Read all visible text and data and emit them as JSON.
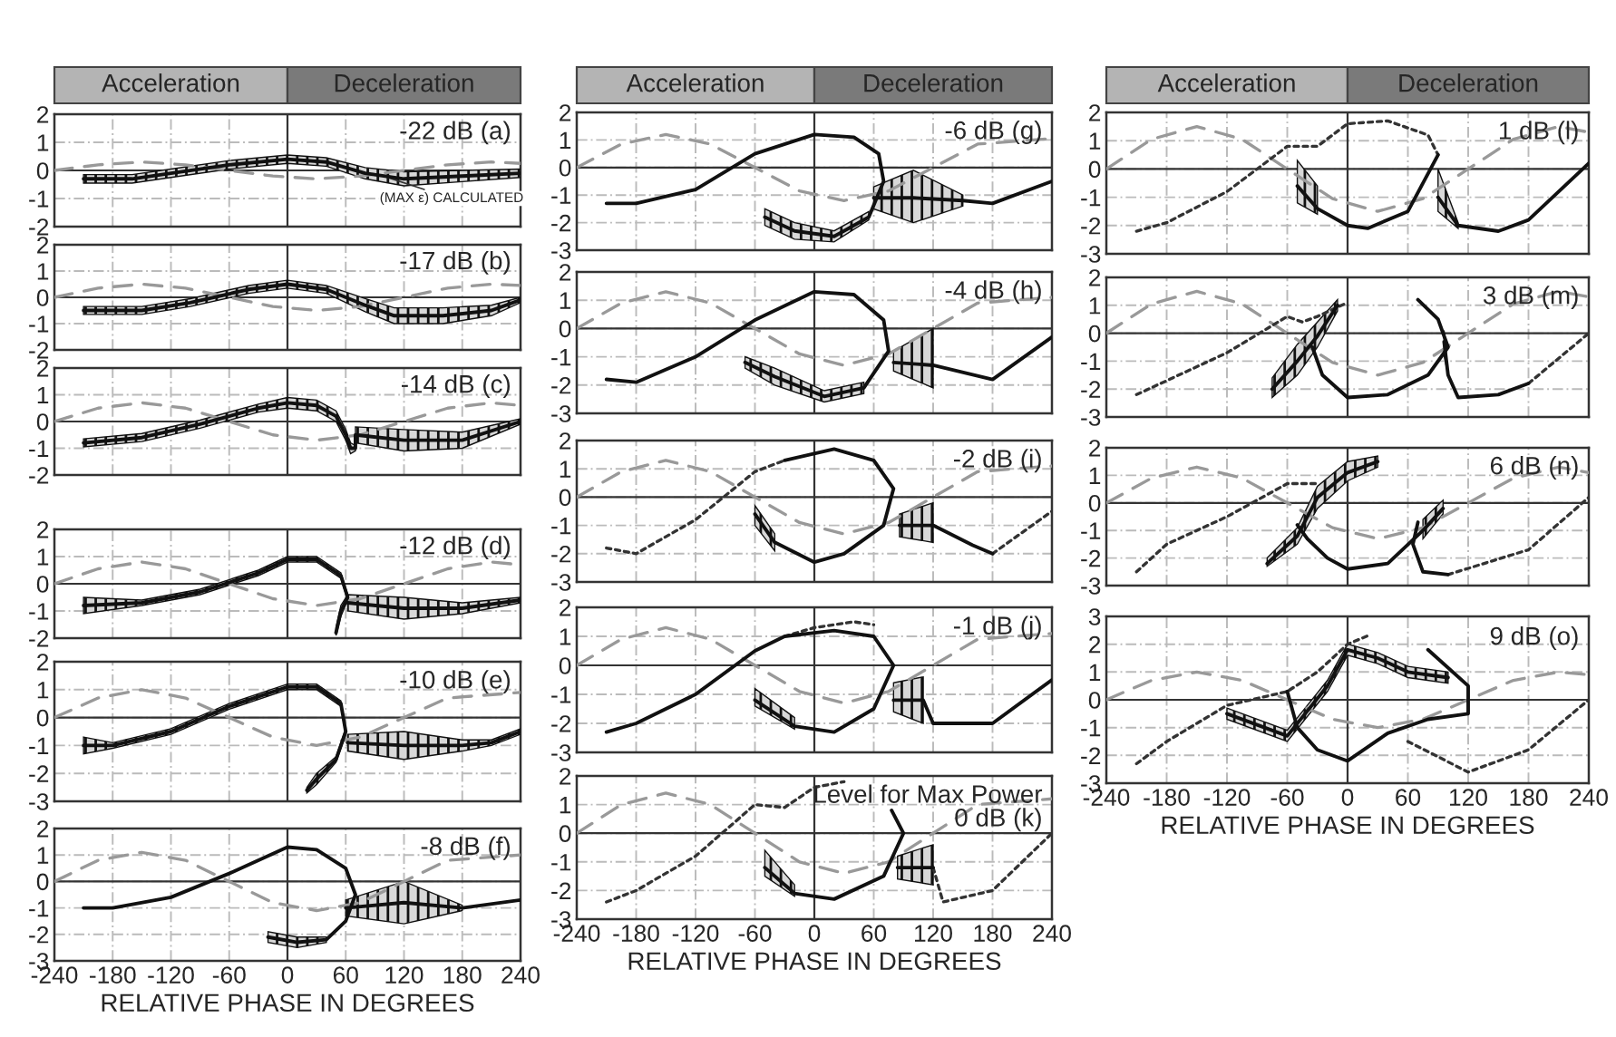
{
  "chart_data": [
    {
      "type": "line",
      "title": "-22 dB (a)",
      "ylim": [
        -2,
        2
      ],
      "yticks": [
        -2,
        -1,
        0,
        1,
        2
      ],
      "xlim": [
        -240,
        240
      ],
      "xticks": [
        -240,
        -180,
        -120,
        -60,
        0,
        60,
        120,
        180,
        240
      ],
      "grid": true,
      "tick_labels": "y",
      "annotations": [
        "Acceleration",
        "Deceleration",
        {
          "text": "(MAX ε) CALCULATED",
          "x": 90,
          "y": -0.1
        }
      ],
      "series": [
        {
          "color": "#999999",
          "line_style": "dashed",
          "x": [
            -240,
            -195,
            -150,
            -105,
            -60,
            -15,
            30,
            75,
            120,
            165,
            210,
            240
          ],
          "values": [
            0,
            0.2,
            0.3,
            0.2,
            0,
            -0.2,
            -0.3,
            -0.2,
            0,
            0.2,
            0.3,
            0.25
          ]
        },
        {
          "color": "#111111",
          "line_style": "solid",
          "x": [
            -210,
            -160,
            -120,
            -60,
            0,
            40,
            80,
            120,
            180,
            240
          ],
          "values": [
            -0.3,
            -0.3,
            -0.1,
            0.2,
            0.4,
            0.3,
            -0.1,
            -0.3,
            -0.2,
            -0.1
          ],
          "lower": [
            -0.45,
            -0.45,
            -0.25,
            0.05,
            0.25,
            0.15,
            -0.3,
            -0.55,
            -0.4,
            -0.25
          ],
          "upper": [
            -0.15,
            -0.15,
            0.05,
            0.35,
            0.55,
            0.45,
            0.1,
            -0.05,
            0,
            0.05
          ]
        }
      ]
    },
    {
      "type": "line",
      "title": "-17 dB (b)",
      "ylim": [
        -2,
        2
      ],
      "yticks": [
        -2,
        -1,
        0,
        1,
        2
      ],
      "xlim": [
        -240,
        240
      ],
      "xticks": [
        -240,
        -180,
        -120,
        -60,
        0,
        60,
        120,
        180,
        240
      ],
      "grid": true,
      "tick_labels": "y",
      "series": [
        {
          "color": "#999999",
          "line_style": "dashed",
          "x": [
            -240,
            -195,
            -150,
            -105,
            -60,
            -15,
            30,
            75,
            120,
            165,
            210,
            240
          ],
          "values": [
            0,
            0.35,
            0.5,
            0.35,
            0,
            -0.35,
            -0.5,
            -0.35,
            0,
            0.35,
            0.5,
            0.45
          ]
        },
        {
          "color": "#111111",
          "line_style": "solid",
          "x": [
            -210,
            -150,
            -100,
            -40,
            0,
            40,
            80,
            110,
            160,
            210,
            240
          ],
          "values": [
            -0.5,
            -0.5,
            -0.2,
            0.3,
            0.5,
            0.3,
            -0.3,
            -0.7,
            -0.7,
            -0.5,
            -0.1
          ],
          "lower": [
            -0.65,
            -0.65,
            -0.35,
            0.15,
            0.35,
            0.15,
            -0.55,
            -1.0,
            -1.0,
            -0.7,
            -0.2
          ],
          "upper": [
            -0.35,
            -0.35,
            -0.05,
            0.45,
            0.65,
            0.45,
            -0.05,
            -0.4,
            -0.4,
            -0.3,
            0
          ]
        }
      ]
    },
    {
      "type": "line",
      "title": "-14 dB (c)",
      "ylim": [
        -2,
        2
      ],
      "yticks": [
        -2,
        -1,
        0,
        1,
        2
      ],
      "xlim": [
        -240,
        240
      ],
      "xticks": [
        -240,
        -180,
        -120,
        -60,
        0,
        60,
        120,
        180,
        240
      ],
      "grid": true,
      "tick_labels": "y",
      "series": [
        {
          "color": "#999999",
          "line_style": "dashed",
          "x": [
            -240,
            -195,
            -150,
            -105,
            -60,
            -15,
            30,
            75,
            120,
            165,
            210,
            240
          ],
          "values": [
            0,
            0.5,
            0.7,
            0.5,
            0,
            -0.5,
            -0.7,
            -0.5,
            0,
            0.5,
            0.7,
            0.6
          ]
        },
        {
          "color": "#111111",
          "line_style": "solid",
          "x": [
            -210,
            -150,
            -90,
            -30,
            0,
            30,
            50,
            60,
            65,
            70,
            70,
            120,
            180,
            240
          ],
          "values": [
            -0.8,
            -0.6,
            -0.1,
            0.5,
            0.7,
            0.6,
            0.2,
            -0.5,
            -1.0,
            -1.0,
            -0.5,
            -0.7,
            -0.7,
            0
          ],
          "lower": [
            -0.95,
            -0.75,
            -0.25,
            0.35,
            0.5,
            0.4,
            0,
            -0.7,
            -1.2,
            -1.1,
            -0.8,
            -1.1,
            -1.0,
            -0.1
          ],
          "upper": [
            -0.65,
            -0.45,
            0.05,
            0.65,
            0.9,
            0.8,
            0.4,
            -0.3,
            -0.8,
            -0.9,
            -0.2,
            -0.3,
            -0.4,
            0.1
          ]
        }
      ]
    },
    {
      "type": "line",
      "title": "-12 dB (d)",
      "ylim": [
        -2,
        2
      ],
      "yticks": [
        -2,
        -1,
        0,
        1,
        2
      ],
      "xlim": [
        -240,
        240
      ],
      "xticks": [
        -240,
        -180,
        -120,
        -60,
        0,
        60,
        120,
        180,
        240
      ],
      "grid": true,
      "tick_labels": "y",
      "series": [
        {
          "color": "#999999",
          "line_style": "dashed",
          "x": [
            -240,
            -195,
            -150,
            -105,
            -60,
            -15,
            30,
            75,
            120,
            165,
            210,
            240
          ],
          "values": [
            0,
            0.55,
            0.8,
            0.55,
            0,
            -0.55,
            -0.8,
            -0.55,
            0,
            0.55,
            0.8,
            0.7
          ]
        },
        {
          "color": "#111111",
          "line_style": "solid",
          "x": [
            -210,
            -150,
            -90,
            -30,
            0,
            30,
            55,
            62,
            55,
            50,
            null,
            62,
            120,
            180,
            240
          ],
          "values": [
            -0.8,
            -0.7,
            -0.3,
            0.4,
            0.9,
            0.9,
            0.3,
            -0.5,
            -1.0,
            -1.8,
            null,
            -0.7,
            -0.9,
            -0.9,
            -0.6
          ],
          "lower": [
            -1.1,
            -0.8,
            -0.4,
            0.3,
            0.8,
            0.8,
            0.2,
            -0.6,
            -1.2,
            -1.9,
            null,
            -1.0,
            -1.3,
            -1.1,
            -0.7
          ],
          "upper": [
            -0.5,
            -0.6,
            -0.2,
            0.5,
            1.0,
            1.0,
            0.4,
            -0.4,
            -0.8,
            -1.6,
            null,
            -0.4,
            -0.5,
            -0.7,
            -0.5
          ]
        }
      ]
    },
    {
      "type": "line",
      "title": "-10 dB (e)",
      "ylim": [
        -3,
        2
      ],
      "yticks": [
        -3,
        -2,
        -1,
        0,
        1,
        2
      ],
      "xlim": [
        -240,
        240
      ],
      "xticks": [
        -240,
        -180,
        -120,
        -60,
        0,
        60,
        120,
        180,
        240
      ],
      "grid": true,
      "tick_labels": "y",
      "series": [
        {
          "color": "#999999",
          "line_style": "dashed",
          "x": [
            -240,
            -195,
            -150,
            -105,
            -60,
            -15,
            30,
            75,
            120,
            165,
            240
          ],
          "values": [
            0,
            0.7,
            1.0,
            0.7,
            0,
            -0.7,
            -1.0,
            -0.7,
            0,
            0.7,
            0.9
          ]
        },
        {
          "color": "#111111",
          "line_style": "solid",
          "x": [
            -210,
            -180,
            -120,
            -60,
            0,
            30,
            55,
            60,
            50,
            30,
            20,
            null,
            62,
            120,
            180,
            210,
            240
          ],
          "values": [
            -1.0,
            -1.0,
            -0.5,
            0.4,
            1.1,
            1.1,
            0.5,
            -0.5,
            -1.5,
            -2.2,
            -2.6,
            null,
            -0.9,
            -1.0,
            -1.0,
            -0.9,
            -0.5
          ],
          "lower": [
            -1.3,
            -1.1,
            -0.6,
            0.3,
            1.0,
            1.0,
            0.4,
            -0.6,
            -1.6,
            -2.4,
            -2.7,
            null,
            -1.2,
            -1.5,
            -1.2,
            -1.0,
            -0.6
          ],
          "upper": [
            -0.7,
            -0.9,
            -0.4,
            0.5,
            1.2,
            1.2,
            0.6,
            -0.4,
            -1.4,
            -2.0,
            -2.5,
            null,
            -0.6,
            -0.5,
            -0.8,
            -0.8,
            -0.4
          ]
        }
      ]
    },
    {
      "type": "line",
      "title": "-8 dB (f)",
      "xlabel": "RELATIVE PHASE IN DEGREES",
      "ylim": [
        -3,
        2
      ],
      "yticks": [
        -3,
        -2,
        -1,
        0,
        1,
        2
      ],
      "xlim": [
        -240,
        240
      ],
      "xticks": [
        -240,
        -180,
        -120,
        -60,
        0,
        60,
        120,
        180,
        240
      ],
      "grid": true,
      "series": [
        {
          "color": "#999999",
          "line_style": "dashed",
          "x": [
            -240,
            -195,
            -150,
            -105,
            -60,
            -15,
            30,
            75,
            120,
            165,
            240
          ],
          "values": [
            0,
            0.8,
            1.1,
            0.8,
            0,
            -0.8,
            -1.1,
            -0.8,
            0,
            0.8,
            1.0
          ]
        },
        {
          "color": "#111111",
          "line_style": "solid",
          "x": [
            -210,
            -180,
            -120,
            -60,
            0,
            30,
            60,
            70,
            60,
            40,
            10,
            -20,
            null,
            60,
            120,
            180,
            240
          ],
          "values": [
            -1.0,
            -1.0,
            -0.6,
            0.3,
            1.3,
            1.2,
            0.5,
            -0.5,
            -1.5,
            -2.2,
            -2.3,
            -2.1,
            null,
            -1.0,
            -0.8,
            -1.0,
            -0.7
          ],
          "lower": [
            null,
            null,
            null,
            null,
            null,
            null,
            null,
            null,
            null,
            -2.3,
            -2.5,
            -2.3,
            null,
            -1.3,
            -1.6,
            -1.1,
            null
          ],
          "upper": [
            null,
            null,
            null,
            null,
            null,
            null,
            null,
            null,
            null,
            -2.1,
            -2.1,
            -1.9,
            null,
            -0.7,
            0,
            -0.9,
            null
          ]
        }
      ]
    },
    {
      "type": "line",
      "title": "-6 dB (g)",
      "ylim": [
        -3,
        2
      ],
      "yticks": [
        -3,
        -2,
        -1,
        0,
        1,
        2
      ],
      "xlim": [
        -240,
        240
      ],
      "xticks": [
        -240,
        -180,
        -120,
        -60,
        0,
        60,
        120,
        180,
        240
      ],
      "grid": true,
      "tick_labels": "y",
      "annotations": [
        "Acceleration",
        "Deceleration"
      ],
      "series": [
        {
          "color": "#999999",
          "line_style": "dashed",
          "x": [
            -240,
            -195,
            -150,
            -105,
            -60,
            -15,
            30,
            75,
            120,
            165,
            240
          ],
          "values": [
            0,
            0.85,
            1.2,
            0.85,
            0,
            -0.85,
            -1.2,
            -0.85,
            0,
            0.85,
            1.05
          ]
        },
        {
          "color": "#111111",
          "line_style": "solid",
          "x": [
            -210,
            -180,
            -120,
            -60,
            0,
            40,
            65,
            70,
            55,
            20,
            -20,
            -50,
            null,
            60,
            100,
            150,
            180,
            240
          ],
          "values": [
            -1.3,
            -1.3,
            -0.8,
            0.5,
            1.2,
            1.1,
            0.5,
            -0.5,
            -1.8,
            -2.5,
            -2.3,
            -1.8,
            null,
            -1.1,
            -1.1,
            -1.2,
            -1.3,
            -0.5
          ],
          "lower": [
            null,
            null,
            null,
            null,
            null,
            null,
            null,
            null,
            -1.9,
            -2.7,
            -2.6,
            -2.1,
            null,
            -1.5,
            -2.0,
            -1.4,
            null,
            null
          ],
          "upper": [
            null,
            null,
            null,
            null,
            null,
            null,
            null,
            null,
            -1.6,
            -2.3,
            -2.0,
            -1.5,
            null,
            -0.7,
            -0.1,
            -1.0,
            null,
            null
          ]
        }
      ]
    },
    {
      "type": "line",
      "title": "-4 dB (h)",
      "ylim": [
        -3,
        2
      ],
      "yticks": [
        -3,
        -2,
        -1,
        0,
        1,
        2
      ],
      "xlim": [
        -240,
        240
      ],
      "xticks": [
        -240,
        -180,
        -120,
        -60,
        0,
        60,
        120,
        180,
        240
      ],
      "grid": true,
      "tick_labels": "y",
      "series": [
        {
          "color": "#999999",
          "line_style": "dashed",
          "x": [
            -240,
            -195,
            -150,
            -105,
            -60,
            -15,
            30,
            75,
            120,
            165,
            240
          ],
          "values": [
            0,
            0.9,
            1.3,
            0.9,
            0,
            -0.9,
            -1.3,
            -0.9,
            0,
            0.9,
            1.1
          ]
        },
        {
          "color": "#111111",
          "line_style": "solid",
          "x": [
            -210,
            -180,
            -120,
            -60,
            0,
            40,
            70,
            75,
            50,
            10,
            -40,
            -70,
            null,
            80,
            120,
            180,
            240
          ],
          "values": [
            -1.8,
            -1.9,
            -1.0,
            0.3,
            1.3,
            1.2,
            0.3,
            -0.8,
            -2.1,
            -2.4,
            -1.7,
            -1.2,
            null,
            -1.2,
            -1.3,
            -1.8,
            -0.3
          ],
          "lower": [
            null,
            null,
            null,
            null,
            null,
            null,
            null,
            null,
            -2.3,
            -2.6,
            -2.0,
            -1.4,
            null,
            -1.5,
            -2.1,
            null,
            null
          ],
          "upper": [
            null,
            null,
            null,
            null,
            null,
            null,
            null,
            null,
            -1.9,
            -2.2,
            -1.4,
            -1.0,
            null,
            -0.8,
            0,
            null,
            null
          ]
        }
      ]
    },
    {
      "type": "line",
      "title": "-2 dB (i)",
      "ylim": [
        -3,
        2
      ],
      "yticks": [
        -3,
        -2,
        -1,
        0,
        1,
        2
      ],
      "xlim": [
        -240,
        240
      ],
      "xticks": [
        -240,
        -180,
        -120,
        -60,
        0,
        60,
        120,
        180,
        240
      ],
      "grid": true,
      "tick_labels": "y",
      "series": [
        {
          "color": "#999999",
          "line_style": "dashed",
          "x": [
            -240,
            -195,
            -150,
            -105,
            -60,
            -15,
            30,
            75,
            120,
            165,
            240
          ],
          "values": [
            0,
            0.9,
            1.3,
            0.9,
            0,
            -0.9,
            -1.3,
            -0.9,
            0,
            0.9,
            1.1
          ]
        },
        {
          "color": "#333333",
          "line_style": "dotted",
          "x": [
            -210,
            -180,
            -120,
            -60,
            -30,
            null,
            180,
            240
          ],
          "values": [
            -1.8,
            -2.0,
            -0.8,
            0.9,
            1.3,
            null,
            -2.0,
            -0.5
          ]
        },
        {
          "color": "#111111",
          "line_style": "solid",
          "x": [
            -30,
            20,
            60,
            80,
            70,
            30,
            0,
            -40,
            -60,
            null,
            86,
            120,
            160,
            180
          ],
          "values": [
            1.3,
            1.7,
            1.3,
            0.3,
            -1.0,
            -2.0,
            -2.3,
            -1.6,
            -0.6,
            null,
            -1.0,
            -1.0,
            -1.7,
            -2.0
          ],
          "lower": [
            null,
            null,
            null,
            null,
            null,
            null,
            null,
            -1.9,
            -1.0,
            null,
            -1.4,
            -1.6,
            null,
            null
          ],
          "upper": [
            null,
            null,
            null,
            null,
            null,
            null,
            null,
            -1.3,
            -0.3,
            null,
            -0.6,
            -0.2,
            null,
            null
          ]
        }
      ]
    },
    {
      "type": "line",
      "title": "-1 dB (j)",
      "ylim": [
        -3,
        2
      ],
      "yticks": [
        -3,
        -2,
        -1,
        0,
        1,
        2
      ],
      "xlim": [
        -240,
        240
      ],
      "xticks": [
        -240,
        -180,
        -120,
        -60,
        0,
        60,
        120,
        180,
        240
      ],
      "grid": true,
      "tick_labels": "y",
      "series": [
        {
          "color": "#999999",
          "line_style": "dashed",
          "x": [
            -240,
            -195,
            -150,
            -105,
            -60,
            -15,
            30,
            75,
            120,
            165,
            240
          ],
          "values": [
            0,
            0.9,
            1.3,
            0.9,
            0,
            -0.9,
            -1.3,
            -0.9,
            0,
            0.9,
            1.1
          ]
        },
        {
          "color": "#333333",
          "line_style": "dotted",
          "x": [
            -30,
            0,
            40,
            60
          ],
          "values": [
            1.0,
            1.3,
            1.5,
            1.4
          ]
        },
        {
          "color": "#111111",
          "line_style": "solid",
          "x": [
            -210,
            -180,
            -120,
            -60,
            -30,
            20,
            60,
            80,
            60,
            20,
            -20,
            -60,
            null,
            80,
            110,
            120,
            180,
            240
          ],
          "values": [
            -2.3,
            -2.0,
            -1.0,
            0.5,
            1.0,
            1.2,
            1.0,
            0.0,
            -1.5,
            -2.3,
            -2.1,
            -1.2,
            null,
            -1.2,
            -1.2,
            -2.0,
            -2.0,
            -0.5
          ],
          "lower": [
            null,
            null,
            null,
            null,
            null,
            null,
            null,
            null,
            null,
            null,
            -2.2,
            -1.4,
            null,
            -1.6,
            -2.0,
            null,
            null,
            null
          ],
          "upper": [
            null,
            null,
            null,
            null,
            null,
            null,
            null,
            null,
            null,
            null,
            -1.8,
            -0.8,
            null,
            -0.6,
            -0.4,
            null,
            null,
            null
          ]
        }
      ]
    },
    {
      "type": "line",
      "title": "Level for Max Power\n0 dB (k)",
      "xlabel": "RELATIVE PHASE IN DEGREES",
      "ylim": [
        -3,
        2
      ],
      "yticks": [
        -3,
        -2,
        -1,
        0,
        1,
        2
      ],
      "xlim": [
        -240,
        240
      ],
      "xticks": [
        -240,
        -180,
        -120,
        -60,
        0,
        60,
        120,
        180,
        240
      ],
      "grid": true,
      "series": [
        {
          "color": "#999999",
          "line_style": "dashed",
          "x": [
            -240,
            -195,
            -150,
            -105,
            -60,
            -15,
            30,
            75,
            120,
            165,
            240
          ],
          "values": [
            0,
            1.0,
            1.4,
            1.0,
            0,
            -1.0,
            -1.4,
            -1.0,
            0,
            1.0,
            1.2
          ]
        },
        {
          "color": "#333333",
          "line_style": "dotted",
          "x": [
            -210,
            -180,
            -120,
            -60,
            -30,
            0,
            30,
            null,
            120,
            130,
            180,
            240
          ],
          "values": [
            -2.4,
            -2.0,
            -0.8,
            1.0,
            0.9,
            1.6,
            1.8,
            null,
            -1.2,
            -2.4,
            -2.0,
            0.0
          ]
        },
        {
          "color": "#111111",
          "line_style": "solid",
          "x": [
            78,
            90,
            70,
            20,
            -20,
            -50,
            null,
            84,
            120
          ],
          "values": [
            0.8,
            0,
            -1.5,
            -2.3,
            -2.1,
            -1.2,
            null,
            -1.2,
            -1.2
          ],
          "lower": [
            null,
            null,
            null,
            null,
            -2.2,
            -1.5,
            null,
            -1.6,
            -1.8
          ],
          "upper": [
            null,
            null,
            null,
            null,
            -1.8,
            -0.6,
            null,
            -0.8,
            -0.4
          ]
        }
      ]
    },
    {
      "type": "line",
      "title": "1 dB (l)",
      "ylim": [
        -3,
        2
      ],
      "yticks": [
        -3,
        -2,
        -1,
        0,
        1,
        2
      ],
      "xlim": [
        -240,
        240
      ],
      "xticks": [
        -240,
        -180,
        -120,
        -60,
        0,
        60,
        120,
        180,
        240
      ],
      "grid": true,
      "tick_labels": "y",
      "annotations": [
        "Acceleration",
        "Deceleration"
      ],
      "series": [
        {
          "color": "#999999",
          "line_style": "dashed",
          "x": [
            -240,
            -195,
            -150,
            -105,
            -60,
            -15,
            30,
            75,
            120,
            165,
            210,
            240
          ],
          "values": [
            0,
            1.05,
            1.5,
            1.05,
            0,
            -1.05,
            -1.5,
            -1.05,
            0,
            1.05,
            1.5,
            1.3
          ]
        },
        {
          "color": "#333333",
          "line_style": "dotted",
          "x": [
            -210,
            -180,
            -120,
            -60,
            -30,
            0,
            40,
            80,
            90
          ],
          "values": [
            -2.2,
            -1.9,
            -0.8,
            0.8,
            0.8,
            1.6,
            1.7,
            1.2,
            0.5
          ]
        },
        {
          "color": "#111111",
          "line_style": "solid",
          "x": [
            90,
            60,
            20,
            0,
            -30,
            -50,
            null,
            90,
            110,
            150,
            180,
            240
          ],
          "values": [
            0.5,
            -1.5,
            -2.1,
            -2.0,
            -1.4,
            -0.6,
            null,
            -1.0,
            -2.0,
            -2.2,
            -1.8,
            0.2
          ],
          "lower": [
            null,
            null,
            null,
            null,
            -1.6,
            -1.2,
            null,
            -1.5,
            -2.1,
            null,
            null,
            null
          ],
          "upper": [
            null,
            null,
            null,
            null,
            -0.6,
            0.3,
            null,
            0.0,
            -1.9,
            null,
            null,
            null
          ]
        }
      ]
    },
    {
      "type": "line",
      "title": "3 dB (m)",
      "ylim": [
        -3,
        2
      ],
      "yticks": [
        -3,
        -2,
        -1,
        0,
        1,
        2
      ],
      "xlim": [
        -240,
        240
      ],
      "xticks": [
        -240,
        -180,
        -120,
        -60,
        0,
        60,
        120,
        180,
        240
      ],
      "grid": true,
      "tick_labels": "y",
      "series": [
        {
          "color": "#999999",
          "line_style": "dashed",
          "x": [
            -240,
            -195,
            -150,
            -105,
            -60,
            -15,
            30,
            75,
            120,
            165,
            210,
            240
          ],
          "values": [
            0,
            1.05,
            1.5,
            1.05,
            0,
            -1.05,
            -1.5,
            -1.05,
            0,
            1.05,
            1.5,
            1.3
          ]
        },
        {
          "color": "#333333",
          "line_style": "dotted",
          "x": [
            -210,
            -120,
            -60,
            -45,
            -30,
            0,
            null,
            180,
            240
          ],
          "values": [
            -2.2,
            -0.7,
            0.6,
            0.4,
            0.6,
            1.1,
            null,
            -1.8,
            0.0
          ]
        },
        {
          "color": "#111111",
          "line_style": "solid",
          "x": [
            -75,
            -50,
            -30,
            -10,
            null,
            -35,
            -25,
            0,
            40,
            80,
            100,
            90,
            70
          ],
          "values": [
            -2.0,
            -1.0,
            -0.1,
            1.0,
            null,
            -0.5,
            -1.5,
            -2.3,
            -2.2,
            -1.5,
            -0.5,
            0.5,
            1.2
          ],
          "lower": [
            -2.3,
            -1.5,
            -0.5,
            0.8,
            null,
            null,
            null,
            null,
            null,
            null,
            null,
            null,
            null
          ],
          "upper": [
            -1.6,
            -0.4,
            0.4,
            1.2,
            null,
            null,
            null,
            null,
            null,
            null,
            null,
            null,
            null
          ]
        },
        {
          "color": "#111111",
          "line_style": "solid",
          "x": [
            96,
            100,
            110,
            150,
            180
          ],
          "values": [
            -0.3,
            -1.5,
            -2.3,
            -2.2,
            -1.8
          ],
          "lower": [
            -0.8,
            -1.5,
            null,
            null,
            null
          ],
          "upper": [
            0.1,
            -1.5,
            null,
            null,
            null
          ]
        }
      ]
    },
    {
      "type": "line",
      "title": "6 dB (n)",
      "ylim": [
        -3,
        2
      ],
      "yticks": [
        -3,
        -2,
        -1,
        0,
        1,
        2
      ],
      "xlim": [
        -240,
        240
      ],
      "xticks": [
        -240,
        -180,
        -120,
        -60,
        0,
        60,
        120,
        180,
        240
      ],
      "grid": true,
      "tick_labels": "y",
      "series": [
        {
          "color": "#999999",
          "line_style": "dashed",
          "x": [
            -240,
            -195,
            -150,
            -105,
            -60,
            -15,
            30,
            75,
            120,
            165,
            210,
            240
          ],
          "values": [
            0,
            0.9,
            1.3,
            0.9,
            0,
            -0.9,
            -1.3,
            -0.9,
            0,
            0.9,
            1.3,
            1.1
          ]
        },
        {
          "color": "#333333",
          "line_style": "dotted",
          "x": [
            -210,
            -180,
            -120,
            -60,
            -30,
            null,
            100,
            180,
            240
          ],
          "values": [
            -2.5,
            -1.5,
            -0.5,
            0.7,
            0.7,
            null,
            -2.6,
            -1.7,
            0.2
          ]
        },
        {
          "color": "#111111",
          "line_style": "solid",
          "x": [
            -80,
            -50,
            -30,
            0,
            30
          ],
          "values": [
            -2.2,
            -1.2,
            0.2,
            1.1,
            1.5
          ],
          "lower": [
            -2.3,
            -1.5,
            -0.2,
            0.8,
            1.3
          ],
          "upper": [
            -2.0,
            -0.9,
            0.6,
            1.5,
            1.7
          ]
        },
        {
          "color": "#111111",
          "line_style": "solid",
          "x": [
            -50,
            -40,
            -20,
            0,
            40,
            75,
            95
          ],
          "values": [
            -0.8,
            -1.3,
            -2.0,
            -2.4,
            -2.2,
            -1.0,
            -0.2
          ],
          "lower": [
            null,
            null,
            null,
            null,
            null,
            -1.3,
            -0.4
          ],
          "upper": [
            null,
            null,
            null,
            null,
            null,
            -0.6,
            0.1
          ]
        },
        {
          "color": "#111111",
          "line_style": "solid",
          "x": [
            70,
            65,
            75,
            100
          ],
          "values": [
            -0.7,
            -1.5,
            -2.5,
            -2.6
          ]
        }
      ]
    },
    {
      "type": "line",
      "title": "9 dB (o)",
      "xlabel": "RELATIVE PHASE IN DEGREES",
      "ylim": [
        -3,
        3
      ],
      "yticks": [
        -3,
        -2,
        -1,
        0,
        1,
        2,
        3
      ],
      "xlim": [
        -240,
        240
      ],
      "xticks": [
        -240,
        -180,
        -120,
        -60,
        0,
        60,
        120,
        180,
        240
      ],
      "grid": true,
      "series": [
        {
          "color": "#999999",
          "line_style": "dashed",
          "x": [
            -240,
            -195,
            -150,
            -105,
            -60,
            -15,
            30,
            75,
            120,
            165,
            210,
            240
          ],
          "values": [
            0,
            0.7,
            1.0,
            0.7,
            0,
            -0.7,
            -1.0,
            -0.7,
            0,
            0.7,
            1.0,
            0.9
          ]
        },
        {
          "color": "#333333",
          "line_style": "dotted",
          "x": [
            -210,
            -180,
            -120,
            -60,
            -30,
            0,
            20,
            null,
            60,
            120,
            180,
            240
          ],
          "values": [
            -2.3,
            -1.5,
            -0.2,
            0.3,
            1.0,
            2.0,
            2.3,
            null,
            -1.5,
            -2.6,
            -1.8,
            0.0
          ]
        },
        {
          "color": "#111111",
          "line_style": "solid",
          "x": [
            -120,
            -60,
            -20,
            0,
            30,
            60,
            100
          ],
          "values": [
            -0.5,
            -1.3,
            0.5,
            1.8,
            1.5,
            1.0,
            0.8
          ],
          "lower": [
            -0.7,
            -1.5,
            0.3,
            1.6,
            1.3,
            0.8,
            0.6
          ],
          "upper": [
            -0.3,
            -1.1,
            0.7,
            2.0,
            1.7,
            1.2,
            1.0
          ]
        },
        {
          "color": "#111111",
          "line_style": "solid",
          "x": [
            80,
            120,
            120,
            80,
            40,
            0,
            -30,
            -50,
            -60
          ],
          "values": [
            1.8,
            0.5,
            -0.5,
            -0.7,
            -1.2,
            -2.2,
            -1.8,
            -1.0,
            0.3
          ]
        }
      ]
    }
  ]
}
